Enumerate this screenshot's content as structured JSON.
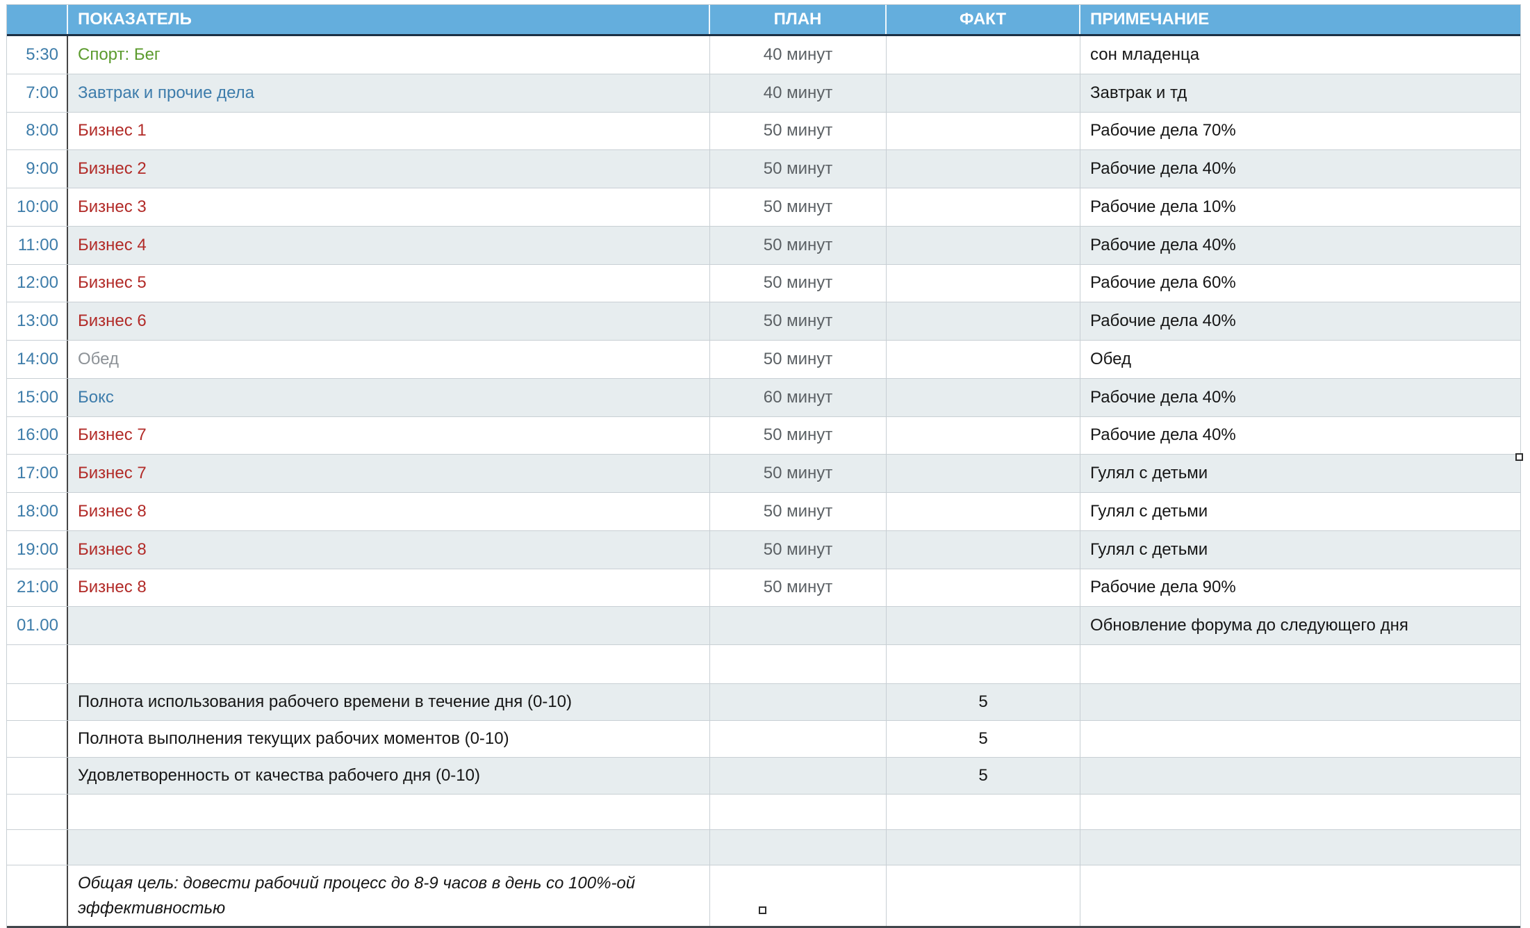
{
  "header": {
    "time": "",
    "indicator": "ПОКАЗАТЕЛЬ",
    "plan": "ПЛАН",
    "fact": "ФАКТ",
    "note": "ПРИМЕЧАНИЕ"
  },
  "rows": [
    {
      "time": "5:30",
      "indicator": "Спорт: Бег",
      "color": "green",
      "plan": "40 минут",
      "fact": "",
      "note": "сон младенца",
      "shaded": false
    },
    {
      "time": "7:00",
      "indicator": "Завтрак и прочие дела",
      "color": "blue",
      "plan": "40 минут",
      "fact": "",
      "note": "Завтрак и тд",
      "shaded": true
    },
    {
      "time": "8:00",
      "indicator": "Бизнес 1",
      "color": "red",
      "plan": "50 минут",
      "fact": "",
      "note": "Рабочие дела 70%",
      "shaded": false
    },
    {
      "time": "9:00",
      "indicator": "Бизнес 2",
      "color": "red",
      "plan": "50 минут",
      "fact": "",
      "note": "Рабочие дела 40%",
      "shaded": true
    },
    {
      "time": "10:00",
      "indicator": "Бизнес 3",
      "color": "red",
      "plan": "50 минут",
      "fact": "",
      "note": "Рабочие дела 10%",
      "shaded": false
    },
    {
      "time": "11:00",
      "indicator": "Бизнес 4",
      "color": "red",
      "plan": "50 минут",
      "fact": "",
      "note": "Рабочие дела 40%",
      "shaded": true
    },
    {
      "time": "12:00",
      "indicator": "Бизнес 5",
      "color": "red",
      "plan": "50 минут",
      "fact": "",
      "note": "Рабочие дела 60%",
      "shaded": false
    },
    {
      "time": "13:00",
      "indicator": "Бизнес 6",
      "color": "red",
      "plan": "50 минут",
      "fact": "",
      "note": "Рабочие дела 40%",
      "shaded": true
    },
    {
      "time": "14:00",
      "indicator": "Обед",
      "color": "gray",
      "plan": "50 минут",
      "fact": "",
      "note": "Обед",
      "shaded": false
    },
    {
      "time": "15:00",
      "indicator": "Бокс",
      "color": "blue",
      "plan": "60 минут",
      "fact": "",
      "note": "Рабочие дела 40%",
      "shaded": true
    },
    {
      "time": "16:00",
      "indicator": "Бизнес 7",
      "color": "red",
      "plan": "50 минут",
      "fact": "",
      "note": "Рабочие дела 40%",
      "shaded": false
    },
    {
      "time": "17:00",
      "indicator": "Бизнес 7",
      "color": "red",
      "plan": "50 минут",
      "fact": "",
      "note": "Гулял с детьми",
      "shaded": true
    },
    {
      "time": "18:00",
      "indicator": "Бизнес 8",
      "color": "red",
      "plan": "50 минут",
      "fact": "",
      "note": "Гулял с детьми",
      "shaded": false
    },
    {
      "time": "19:00",
      "indicator": "Бизнес 8",
      "color": "red",
      "plan": "50 минут",
      "fact": "",
      "note": "Гулял с детьми",
      "shaded": true
    },
    {
      "time": "21:00",
      "indicator": "Бизнес 8",
      "color": "red",
      "plan": "50 минут",
      "fact": "",
      "note": "Рабочие дела 90%",
      "shaded": false
    },
    {
      "time": "01.00",
      "indicator": "",
      "color": "",
      "plan": "",
      "fact": "",
      "note": "Обновление форума до следующего дня",
      "shaded": true
    }
  ],
  "summary_rows": [
    {
      "label": "Полнота использования рабочего времени в течение дня (0-10)",
      "plan": "",
      "fact": "5",
      "note": "",
      "shaded": true
    },
    {
      "label": "Полнота выполнения текущих рабочих моментов (0-10)",
      "plan": "",
      "fact": "5",
      "note": "",
      "shaded": false
    },
    {
      "label": "Удовлетворенность от качества рабочего дня (0-10)",
      "plan": "",
      "fact": "5",
      "note": "",
      "shaded": true
    }
  ],
  "goal": "Общая цель: довести рабочий процесс до 8-9 часов в день со 100%-ой эффективностью",
  "colors": {
    "header_bg": "#64aedd",
    "header_text": "#ffffff",
    "row_shade": "#e7edef",
    "border_light": "#c8cfd4",
    "border_dark": "#454545",
    "header_underline": "#1c3044",
    "time_text": "#3d7ca9",
    "indicator_red": "#b22b28",
    "indicator_green": "#5c9b2e",
    "indicator_blue": "#3d7cab",
    "indicator_gray": "#8d9297",
    "plan_text": "#5b6064",
    "body_text": "#161616"
  }
}
